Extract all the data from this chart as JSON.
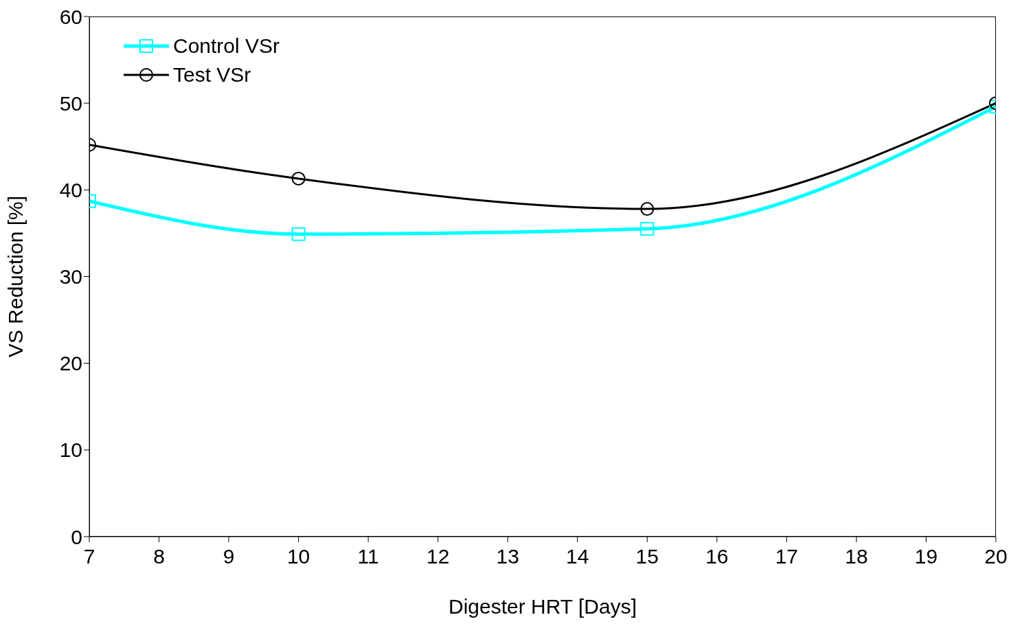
{
  "chart_data": {
    "type": "line",
    "xlabel": "Digester HRT [Days]",
    "ylabel": "VS Reduction [%]",
    "x": [
      7,
      10,
      15,
      20
    ],
    "series": [
      {
        "name": "Control VSr",
        "color": "#00ffff",
        "marker": "square",
        "values": [
          38.7,
          34.9,
          35.5,
          49.6
        ]
      },
      {
        "name": "Test VSr",
        "color": "#000000",
        "marker": "circle",
        "values": [
          45.2,
          41.3,
          37.8,
          50.0
        ]
      }
    ],
    "xlim": [
      7,
      20
    ],
    "xticks": [
      7,
      8,
      9,
      10,
      11,
      12,
      13,
      14,
      15,
      16,
      17,
      18,
      19,
      20
    ],
    "ylim": [
      0,
      60
    ],
    "yticks": [
      0,
      10,
      20,
      30,
      40,
      50,
      60
    ],
    "grid": false,
    "legend": "top left",
    "line_style": "solid"
  }
}
